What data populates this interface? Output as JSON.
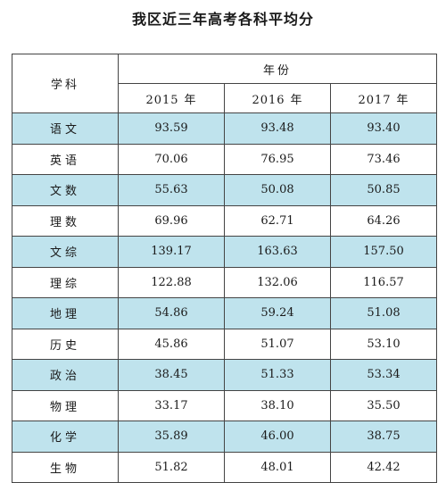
{
  "title": "我区近三年高考各科平均分",
  "header": {
    "subject_label": "学科",
    "year_group_label": "年份",
    "unit": "年",
    "years": [
      "2015",
      "2016",
      "2017"
    ]
  },
  "rows": [
    {
      "subject": "语文",
      "values": [
        "93.59",
        "93.48",
        "93.40"
      ]
    },
    {
      "subject": "英语",
      "values": [
        "70.06",
        "76.95",
        "73.46"
      ]
    },
    {
      "subject": "文数",
      "values": [
        "55.63",
        "50.08",
        "50.85"
      ]
    },
    {
      "subject": "理数",
      "values": [
        "69.96",
        "62.71",
        "64.26"
      ]
    },
    {
      "subject": "文综",
      "values": [
        "139.17",
        "163.63",
        "157.50"
      ]
    },
    {
      "subject": "理综",
      "values": [
        "122.88",
        "132.06",
        "116.57"
      ]
    },
    {
      "subject": "地理",
      "values": [
        "54.86",
        "59.24",
        "51.08"
      ]
    },
    {
      "subject": "历史",
      "values": [
        "45.86",
        "51.07",
        "53.10"
      ]
    },
    {
      "subject": "政治",
      "values": [
        "38.45",
        "51.33",
        "53.34"
      ]
    },
    {
      "subject": "物理",
      "values": [
        "33.17",
        "38.10",
        "35.50"
      ]
    },
    {
      "subject": "化学",
      "values": [
        "35.89",
        "46.00",
        "38.75"
      ]
    },
    {
      "subject": "生物",
      "values": [
        "51.82",
        "48.01",
        "42.42"
      ]
    }
  ],
  "colors": {
    "shaded_row": "#bfe3ed",
    "border": "#444444"
  }
}
